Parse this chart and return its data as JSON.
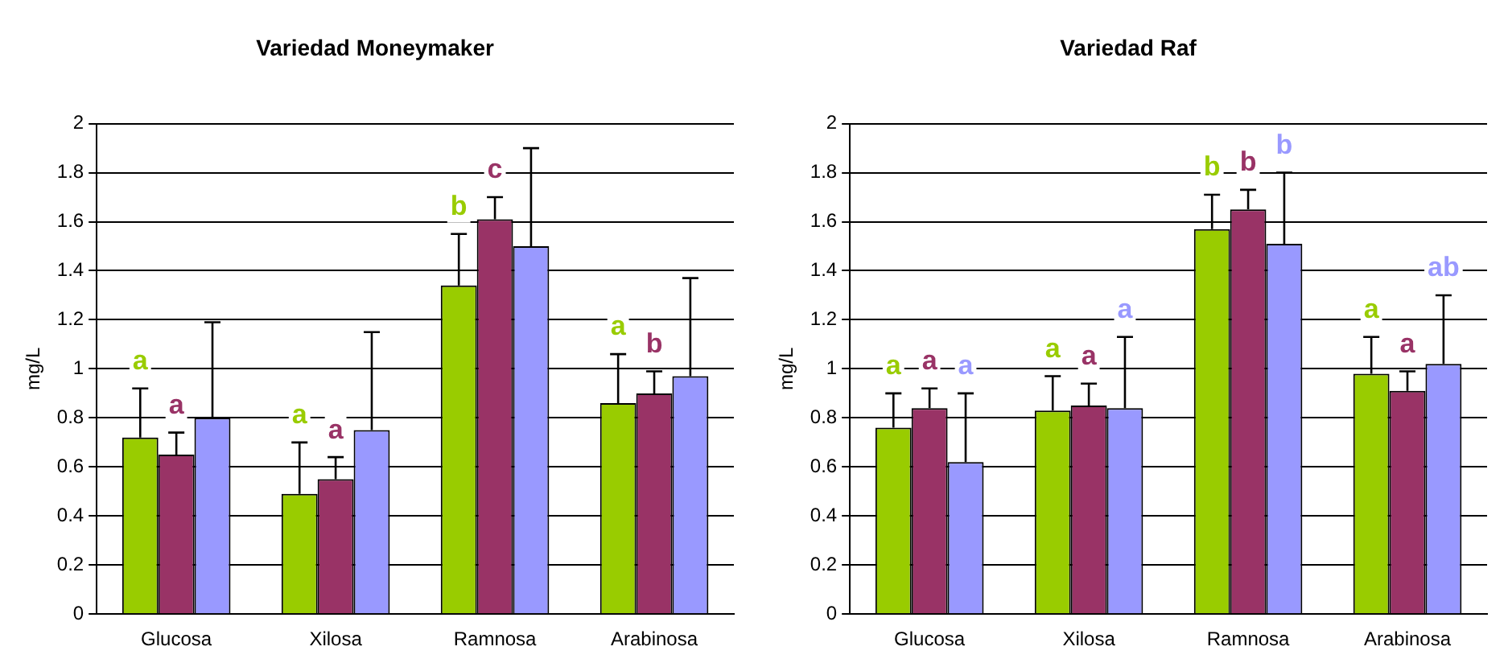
{
  "chart_data": [
    {
      "type": "bar",
      "title": "Variedad Moneymaker",
      "ylabel": "mg/L",
      "categories": [
        "Glucosa",
        "Xilosa",
        "Ramnosa",
        "Arabinosa"
      ],
      "ylim": [
        0,
        2
      ],
      "yticks": [
        0,
        0.2,
        0.4,
        0.6,
        0.8,
        1,
        1.2,
        1.4,
        1.6,
        1.8,
        2
      ],
      "grid": "y",
      "legend": false,
      "series": [
        {
          "color": "#99cc00",
          "values": [
            0.72,
            0.49,
            1.34,
            0.86
          ],
          "errors": [
            [
              0.72,
              0.92
            ],
            [
              0.49,
              0.7
            ],
            [
              1.34,
              1.55
            ],
            [
              0.86,
              1.06
            ]
          ],
          "value_labels": [
            "a",
            "a",
            "b",
            "a"
          ]
        },
        {
          "color": "#993366",
          "values": [
            0.65,
            0.55,
            1.61,
            0.9
          ],
          "errors": [
            [
              0.65,
              0.74
            ],
            [
              0.55,
              0.64
            ],
            [
              1.61,
              1.7
            ],
            [
              0.9,
              0.99
            ]
          ],
          "value_labels": [
            "a",
            "a",
            "c",
            "b"
          ]
        },
        {
          "color": "#9999ff",
          "values": [
            0.8,
            0.75,
            1.5,
            0.97
          ],
          "errors": [
            [
              0.8,
              1.19
            ],
            [
              0.75,
              1.15
            ],
            [
              1.5,
              1.9
            ],
            [
              0.97,
              1.37
            ]
          ]
        }
      ]
    },
    {
      "type": "bar",
      "title": "Variedad Raf",
      "ylabel": "mg/L",
      "categories": [
        "Glucosa",
        "Xilosa",
        "Ramnosa",
        "Arabinosa"
      ],
      "ylim": [
        0,
        2
      ],
      "yticks": [
        0,
        0.2,
        0.4,
        0.6,
        0.8,
        1,
        1.2,
        1.4,
        1.6,
        1.8,
        2
      ],
      "grid": "y",
      "legend": false,
      "series": [
        {
          "color": "#99cc00",
          "values": [
            0.76,
            0.83,
            1.57,
            0.98
          ],
          "errors": [
            [
              0.76,
              0.9
            ],
            [
              0.83,
              0.97
            ],
            [
              1.57,
              1.71
            ],
            [
              0.98,
              1.13
            ]
          ],
          "value_labels": [
            "a",
            "a",
            "b",
            "a"
          ]
        },
        {
          "color": "#993366",
          "values": [
            0.84,
            0.85,
            1.65,
            0.91
          ],
          "errors": [
            [
              0.84,
              0.92
            ],
            [
              0.85,
              0.94
            ],
            [
              1.65,
              1.73
            ],
            [
              0.91,
              0.99
            ]
          ],
          "value_labels": [
            "a",
            "a",
            "b",
            "a"
          ]
        },
        {
          "color": "#9999ff",
          "values": [
            0.62,
            0.84,
            1.51,
            1.02
          ],
          "errors": [
            [
              0.62,
              0.9
            ],
            [
              0.84,
              1.13
            ],
            [
              1.51,
              1.8
            ],
            [
              1.02,
              1.3
            ]
          ],
          "value_labels": [
            "a",
            "a",
            "b",
            "ab"
          ]
        }
      ]
    }
  ]
}
